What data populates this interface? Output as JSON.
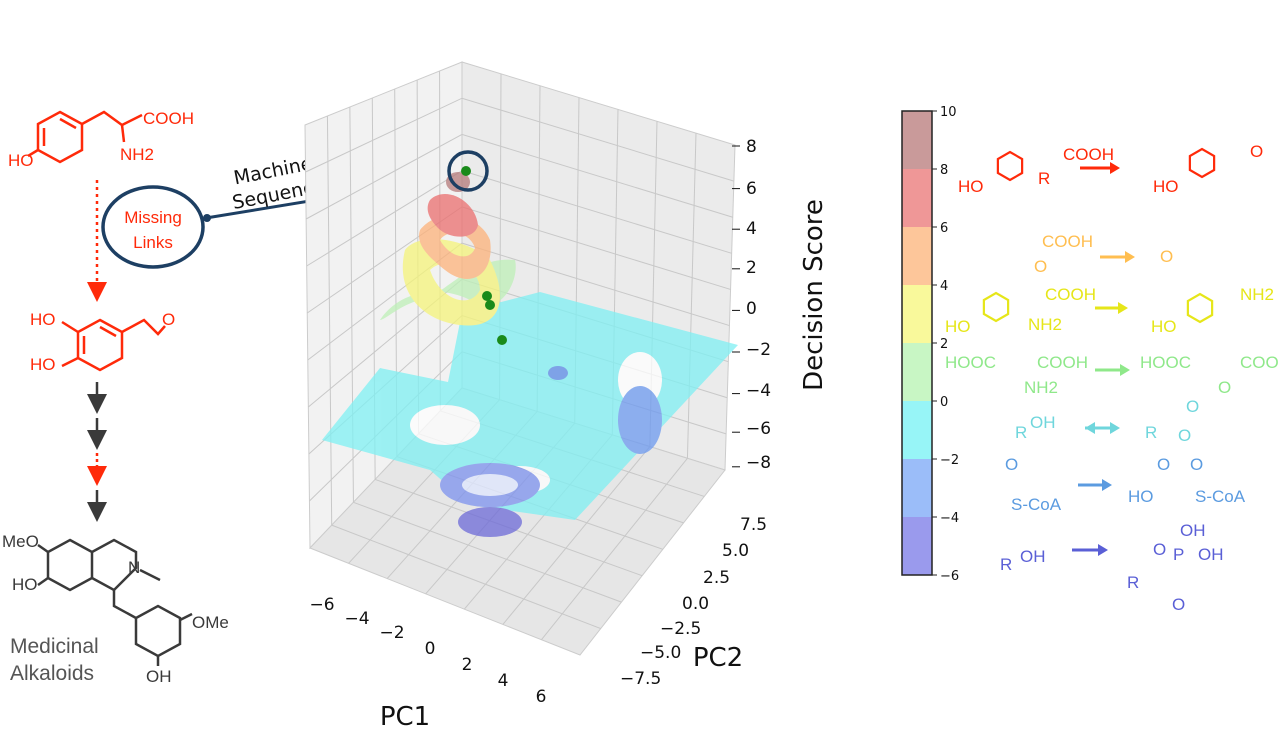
{
  "pathway": {
    "start": {
      "cooh": "COOH",
      "nh2": "NH2",
      "ho": "HO"
    },
    "missing_links": [
      "Missing",
      "Links"
    ],
    "ml_label": [
      "Machine Learning",
      "Sequence Prediction"
    ],
    "intermediate": {
      "ho1": "HO",
      "ho2": "HO",
      "o": "O"
    },
    "product": {
      "meo": "MeO",
      "ho": "HO",
      "n": "N",
      "ome": "OMe",
      "oh": "OH"
    },
    "caption": [
      "Medicinal",
      "Alkaloids"
    ],
    "colors": {
      "red": "#ff2a0a",
      "dark": "#3a3a3a",
      "navy": "#1d3f63"
    }
  },
  "plot": {
    "z_label": "Decision Score",
    "x_label": "PC1",
    "y_label": "PC2",
    "z_ticks": [
      "8",
      "6",
      "4",
      "2",
      "0",
      "−2",
      "−4",
      "−6",
      "−8"
    ],
    "x_ticks": [
      "−6",
      "−4",
      "−2",
      "0",
      "2",
      "4",
      "6"
    ],
    "y_ticks": [
      "7.5",
      "5.0",
      "2.5",
      "0.0",
      "−2.5",
      "−5.0",
      "−7.5"
    ],
    "z_range": [
      -8,
      8
    ],
    "x_range": [
      -6,
      6
    ],
    "y_range": [
      -7.5,
      7.5
    ]
  },
  "colorbar": {
    "ticks": [
      "10",
      "8",
      "6",
      "4",
      "2",
      "0",
      "−2",
      "−4",
      "−6"
    ],
    "levels": [
      {
        "from": 8,
        "to": 10,
        "color": "#c99a9a"
      },
      {
        "from": 6,
        "to": 8,
        "color": "#ef9797"
      },
      {
        "from": 4,
        "to": 6,
        "color": "#fdc69a"
      },
      {
        "from": 2,
        "to": 4,
        "color": "#f9f99b"
      },
      {
        "from": 0,
        "to": 2,
        "color": "#c8f6c4"
      },
      {
        "from": -2,
        "to": 0,
        "color": "#97f5f7"
      },
      {
        "from": -4,
        "to": -2,
        "color": "#9bbdf9"
      },
      {
        "from": -6,
        "to": -4,
        "color": "#9a9aed"
      }
    ]
  },
  "reactions": [
    {
      "color": "#ff2a0a",
      "sub": [
        "HO",
        "COOH",
        "R"
      ],
      "prod": [
        "HO",
        "O"
      ]
    },
    {
      "color": "#ffbe50",
      "sub": [
        "COOH",
        "O"
      ],
      "prod": [
        "O"
      ]
    },
    {
      "color": "#e6e619",
      "sub": [
        "HO",
        "COOH",
        "NH2"
      ],
      "prod": [
        "HO",
        "NH2"
      ]
    },
    {
      "color": "#8fe88a",
      "sub": [
        "HOOC",
        "COOH",
        "NH2"
      ],
      "prod": [
        "HOOC",
        "COOH",
        "O"
      ]
    },
    {
      "color": "#6fd6dc",
      "sub": [
        "R",
        "OH"
      ],
      "prod": [
        "R",
        "O",
        "O"
      ]
    },
    {
      "color": "#5b9be0",
      "sub": [
        "O",
        "S-CoA"
      ],
      "prod": [
        "HO",
        "O",
        "O",
        "S-CoA"
      ]
    },
    {
      "color": "#5a5fd6",
      "sub": [
        "R",
        "OH"
      ],
      "prod": [
        "R",
        "O",
        "P",
        "OH",
        "OH",
        "O"
      ]
    }
  ]
}
